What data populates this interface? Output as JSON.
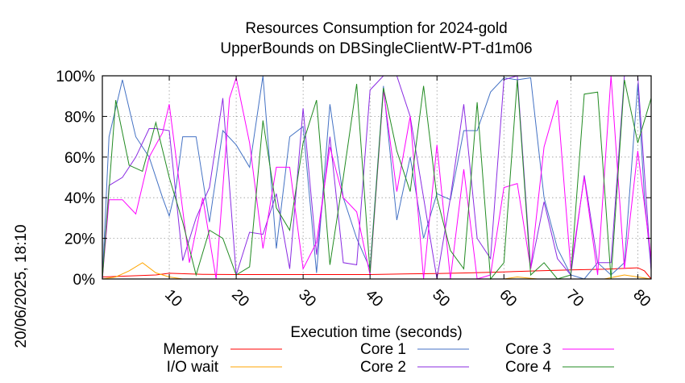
{
  "chart_data": {
    "type": "line",
    "title": "Resources Consumption for 2024-gold",
    "subtitle": "UpperBounds on DBSingleClientW-PT-d1m06",
    "xlabel": "Execution time (seconds)",
    "ylabel": "",
    "timestamp": "20/06/2025, 18:10",
    "xlim": [
      0,
      82
    ],
    "ylim": [
      0,
      100
    ],
    "x_ticks": [
      "10",
      "20",
      "30",
      "40",
      "50",
      "60",
      "70",
      "80"
    ],
    "x_tick_values": [
      10,
      20,
      30,
      40,
      50,
      60,
      70,
      80
    ],
    "y_ticks": [
      "0%",
      "20%",
      "40%",
      "60%",
      "80%",
      "100%"
    ],
    "y_tick_values": [
      0,
      20,
      40,
      60,
      80,
      100
    ],
    "grid": true,
    "legend_position": "bottom",
    "series": [
      {
        "name": "Memory",
        "color": "#ff0000",
        "x": [
          0,
          4,
          8,
          10,
          15,
          20,
          25,
          30,
          35,
          40,
          45,
          50,
          55,
          60,
          65,
          70,
          75,
          80,
          81,
          82
        ],
        "y": [
          1,
          1.5,
          2,
          2.8,
          2.3,
          2.2,
          2.2,
          2.2,
          2.2,
          2.2,
          2.5,
          2.7,
          3,
          3.5,
          4,
          4.5,
          4.8,
          5.5,
          4,
          0
        ]
      },
      {
        "name": "I/O wait",
        "color": "#ffa500",
        "x": [
          0,
          2,
          4,
          6,
          8,
          10,
          12,
          20,
          30,
          40,
          50,
          60,
          62,
          65,
          70,
          75,
          78,
          80,
          82
        ],
        "y": [
          0,
          1,
          4,
          8,
          3,
          1,
          0,
          0,
          0,
          0,
          0,
          0,
          1,
          0,
          0,
          0,
          2,
          1,
          0
        ]
      },
      {
        "name": "Core 1",
        "color": "#4472c4",
        "x": [
          0,
          1,
          3,
          5,
          7,
          9,
          10,
          11,
          12,
          14,
          16,
          18,
          20,
          22,
          24,
          26,
          28,
          30,
          32,
          34,
          36,
          38,
          40,
          42,
          44,
          46,
          48,
          50,
          52,
          54,
          56,
          58,
          60,
          62,
          64,
          66,
          68,
          70,
          72,
          74,
          76,
          78,
          80,
          81,
          82
        ],
        "y": [
          0,
          70,
          98,
          70,
          60,
          40,
          31,
          45,
          70,
          70,
          28,
          73,
          66,
          55,
          100,
          15,
          70,
          75,
          3,
          86,
          40,
          20,
          5,
          95,
          29,
          60,
          20,
          42,
          39,
          73,
          73,
          92,
          99,
          98,
          99,
          40,
          15,
          2,
          0,
          8,
          2,
          8,
          96,
          40,
          5
        ]
      },
      {
        "name": "Core 2",
        "color": "#8a2be2",
        "x": [
          0,
          1,
          3,
          5,
          7,
          8,
          10,
          12,
          14,
          16,
          18,
          20,
          22,
          24,
          26,
          28,
          30,
          32,
          34,
          36,
          38,
          40,
          42,
          44,
          46,
          48,
          50,
          52,
          54,
          56,
          58,
          60,
          62,
          64,
          66,
          68,
          70,
          72,
          74,
          76,
          78,
          80,
          82
        ],
        "y": [
          0,
          46,
          50,
          60,
          74,
          74,
          73,
          9,
          30,
          45,
          89,
          2,
          23,
          22,
          42,
          5,
          84,
          12,
          70,
          8,
          7,
          93,
          100,
          100,
          80,
          40,
          0,
          40,
          86,
          20,
          10,
          98,
          100,
          5,
          38,
          10,
          2,
          51,
          8,
          8,
          100,
          100,
          4
        ]
      },
      {
        "name": "Core 3",
        "color": "#ff00ff",
        "x": [
          0,
          1,
          3,
          5,
          7,
          9,
          10,
          11,
          13,
          15,
          17,
          19,
          20,
          22,
          24,
          26,
          28,
          30,
          32,
          34,
          36,
          38,
          40,
          42,
          44,
          46,
          48,
          50,
          52,
          54,
          56,
          58,
          60,
          62,
          64,
          66,
          68,
          70,
          72,
          74,
          76,
          78,
          80,
          82
        ],
        "y": [
          0,
          39,
          39,
          32,
          60,
          72,
          86,
          60,
          8,
          40,
          0,
          89,
          99,
          67,
          15,
          55,
          55,
          5,
          18,
          65,
          40,
          33,
          2,
          93,
          43,
          80,
          0,
          66,
          0,
          54,
          0,
          2,
          45,
          47,
          5,
          65,
          88,
          5,
          50,
          2,
          100,
          5,
          63,
          10
        ]
      },
      {
        "name": "Core 4",
        "color": "#228b22",
        "x": [
          0,
          2,
          4,
          6,
          8,
          10,
          12,
          14,
          16,
          18,
          20,
          22,
          24,
          26,
          28,
          30,
          32,
          34,
          36,
          38,
          40,
          42,
          44,
          46,
          48,
          50,
          52,
          54,
          56,
          58,
          60,
          62,
          64,
          66,
          68,
          70,
          72,
          74,
          76,
          78,
          80,
          82
        ],
        "y": [
          0,
          88,
          56,
          53,
          77,
          50,
          28,
          2,
          24,
          20,
          2,
          6,
          78,
          35,
          24,
          67,
          88,
          7,
          50,
          96,
          3,
          94,
          63,
          43,
          95,
          40,
          14,
          5,
          87,
          0,
          8,
          98,
          2,
          8,
          0,
          2,
          91,
          92,
          0,
          98,
          67,
          89
        ]
      }
    ]
  }
}
